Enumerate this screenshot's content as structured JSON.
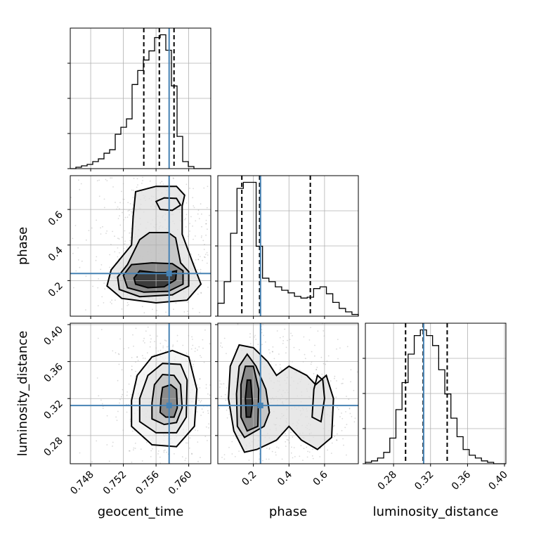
{
  "colors": {
    "truth": "#4682b4",
    "contour": "#000000",
    "grid": "#b0b0b0"
  },
  "chart_data": {
    "type": "corner",
    "parameters": [
      {
        "key": "geocent_time",
        "label": "geocent_time",
        "range": [
          0.7455,
          0.7627
        ],
        "ticks": [
          0.748,
          0.752,
          0.756,
          0.76
        ],
        "tick_labels": [
          "0.748",
          "0.752",
          "0.756",
          "0.760"
        ],
        "truth": 0.7576,
        "quantiles": [
          0.7545,
          0.7564,
          0.7582
        ],
        "hist_bins": [
          0.7455,
          0.7627
        ],
        "hist_counts": [
          0,
          2,
          4,
          6,
          10,
          14,
          22,
          27,
          49,
          59,
          71,
          120,
          140,
          155,
          168,
          187,
          191,
          169,
          118,
          46,
          10,
          3,
          0,
          0,
          0
        ]
      },
      {
        "key": "phase",
        "label": "phase",
        "range": [
          0.0,
          0.79
        ],
        "ticks": [
          0.2,
          0.4,
          0.6
        ],
        "tick_labels": [
          "0.2",
          "0.4",
          "0.6"
        ],
        "truth": 0.24,
        "quantiles": [
          0.135,
          0.235,
          0.52
        ],
        "hist_bins": [
          0.0,
          0.79
        ],
        "hist_counts": [
          15,
          40,
          96,
          148,
          155,
          155,
          81,
          44,
          40,
          34,
          30,
          27,
          23,
          21,
          22,
          32,
          34,
          26,
          16,
          9,
          5,
          2
        ]
      },
      {
        "key": "luminosity_distance",
        "label": "luminosity_distance",
        "range": [
          0.2495,
          0.4015
        ],
        "ticks": [
          0.28,
          0.32,
          0.36,
          0.4
        ],
        "tick_labels": [
          "0.28",
          "0.32",
          "0.36",
          "0.40"
        ],
        "truth": 0.3125,
        "quantiles": [
          0.293,
          0.312,
          0.338
        ],
        "hist_bins": [
          0.2495,
          0.4015
        ],
        "hist_counts": [
          1,
          2,
          4,
          8,
          18,
          38,
          57,
          77,
          90,
          94,
          90,
          83,
          66,
          49,
          32,
          19,
          10,
          6,
          4,
          2,
          1,
          0,
          0
        ]
      }
    ],
    "pairs": [
      {
        "x": "geocent_time",
        "y": "phase",
        "contours": [
          [
            [
              0.754,
              0.255
            ],
            [
              0.756,
              0.245
            ],
            [
              0.7575,
              0.245
            ],
            [
              0.7585,
              0.255
            ],
            [
              0.7584,
              0.205
            ],
            [
              0.757,
              0.165
            ],
            [
              0.755,
              0.16
            ],
            [
              0.7535,
              0.18
            ],
            [
              0.7533,
              0.215
            ]
          ],
          [
            [
              0.753,
              0.29
            ],
            [
              0.7555,
              0.3
            ],
            [
              0.758,
              0.295
            ],
            [
              0.7593,
              0.255
            ],
            [
              0.7593,
              0.18
            ],
            [
              0.7575,
              0.14
            ],
            [
              0.7545,
              0.135
            ],
            [
              0.7525,
              0.16
            ],
            [
              0.752,
              0.23
            ]
          ],
          [
            [
              0.754,
              0.43
            ],
            [
              0.7552,
              0.47
            ],
            [
              0.7575,
              0.47
            ],
            [
              0.7584,
              0.44
            ],
            [
              0.759,
              0.3
            ],
            [
              0.76,
              0.25
            ],
            [
              0.76,
              0.17
            ],
            [
              0.758,
              0.12
            ],
            [
              0.754,
              0.11
            ],
            [
              0.7515,
              0.15
            ],
            [
              0.7513,
              0.22
            ],
            [
              0.7525,
              0.29
            ]
          ],
          [
            [
              0.7535,
              0.7
            ],
            [
              0.756,
              0.73
            ],
            [
              0.7585,
              0.73
            ],
            [
              0.7595,
              0.68
            ],
            [
              0.7592,
              0.62
            ],
            [
              0.7592,
              0.46
            ],
            [
              0.7605,
              0.3
            ],
            [
              0.7615,
              0.18
            ],
            [
              0.7598,
              0.09
            ],
            [
              0.756,
              0.075
            ],
            [
              0.7518,
              0.1
            ],
            [
              0.75,
              0.17
            ],
            [
              0.7505,
              0.26
            ],
            [
              0.753,
              0.4
            ],
            [
              0.7532,
              0.56
            ]
          ],
          [
            [
              0.756,
              0.645
            ],
            [
              0.757,
              0.665
            ],
            [
              0.7585,
              0.662
            ],
            [
              0.759,
              0.625
            ],
            [
              0.758,
              0.595
            ],
            [
              0.7565,
              0.6
            ]
          ]
        ]
      },
      {
        "x": "geocent_time",
        "y": "luminosity_distance",
        "contours": [
          [
            [
              0.7565,
              0.305
            ],
            [
              0.7572,
              0.3
            ],
            [
              0.7582,
              0.3
            ],
            [
              0.7586,
              0.31
            ],
            [
              0.7585,
              0.33
            ],
            [
              0.7578,
              0.335
            ],
            [
              0.7568,
              0.332
            ],
            [
              0.7566,
              0.32
            ]
          ],
          [
            [
              0.7555,
              0.298
            ],
            [
              0.757,
              0.292
            ],
            [
              0.7585,
              0.294
            ],
            [
              0.7592,
              0.31
            ],
            [
              0.759,
              0.335
            ],
            [
              0.7582,
              0.345
            ],
            [
              0.7568,
              0.346
            ],
            [
              0.7558,
              0.335
            ],
            [
              0.7555,
              0.315
            ]
          ],
          [
            [
              0.754,
              0.295
            ],
            [
              0.756,
              0.283
            ],
            [
              0.7585,
              0.283
            ],
            [
              0.7597,
              0.3
            ],
            [
              0.7598,
              0.34
            ],
            [
              0.759,
              0.357
            ],
            [
              0.7568,
              0.358
            ],
            [
              0.755,
              0.345
            ],
            [
              0.754,
              0.32
            ]
          ],
          [
            [
              0.753,
              0.29
            ],
            [
              0.7555,
              0.27
            ],
            [
              0.7585,
              0.268
            ],
            [
              0.7607,
              0.29
            ],
            [
              0.761,
              0.33
            ],
            [
              0.76,
              0.365
            ],
            [
              0.758,
              0.372
            ],
            [
              0.7555,
              0.365
            ],
            [
              0.7537,
              0.345
            ],
            [
              0.753,
              0.318
            ]
          ]
        ]
      },
      {
        "x": "phase",
        "y": "luminosity_distance",
        "contours": [
          [
            [
              0.16,
              0.3
            ],
            [
              0.185,
              0.3
            ],
            [
              0.195,
              0.315
            ],
            [
              0.185,
              0.34
            ],
            [
              0.165,
              0.34
            ],
            [
              0.155,
              0.32
            ]
          ],
          [
            [
              0.13,
              0.3
            ],
            [
              0.165,
              0.285
            ],
            [
              0.225,
              0.29
            ],
            [
              0.23,
              0.33
            ],
            [
              0.2,
              0.355
            ],
            [
              0.155,
              0.355
            ],
            [
              0.13,
              0.335
            ]
          ],
          [
            [
              0.11,
              0.29
            ],
            [
              0.15,
              0.278
            ],
            [
              0.26,
              0.29
            ],
            [
              0.29,
              0.305
            ],
            [
              0.27,
              0.33
            ],
            [
              0.215,
              0.355
            ],
            [
              0.165,
              0.368
            ],
            [
              0.12,
              0.355
            ],
            [
              0.105,
              0.325
            ]
          ],
          [
            [
              0.06,
              0.32
            ],
            [
              0.09,
              0.285
            ],
            [
              0.15,
              0.262
            ],
            [
              0.22,
              0.265
            ],
            [
              0.33,
              0.275
            ],
            [
              0.4,
              0.29
            ],
            [
              0.47,
              0.275
            ],
            [
              0.56,
              0.265
            ],
            [
              0.64,
              0.278
            ],
            [
              0.65,
              0.32
            ],
            [
              0.61,
              0.345
            ],
            [
              0.55,
              0.335
            ],
            [
              0.5,
              0.345
            ],
            [
              0.4,
              0.355
            ],
            [
              0.33,
              0.345
            ],
            [
              0.28,
              0.36
            ],
            [
              0.2,
              0.375
            ],
            [
              0.12,
              0.378
            ],
            [
              0.07,
              0.355
            ]
          ],
          [
            [
              0.53,
              0.3
            ],
            [
              0.58,
              0.295
            ],
            [
              0.6,
              0.32
            ],
            [
              0.59,
              0.34
            ],
            [
              0.56,
              0.345
            ],
            [
              0.54,
              0.33
            ]
          ]
        ]
      }
    ]
  }
}
